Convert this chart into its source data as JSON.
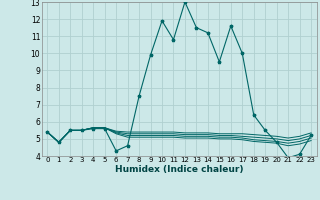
{
  "xlabel": "Humidex (Indice chaleur)",
  "xlim": [
    -0.5,
    23.5
  ],
  "ylim": [
    4,
    13
  ],
  "yticks": [
    4,
    5,
    6,
    7,
    8,
    9,
    10,
    11,
    12,
    13
  ],
  "xticks": [
    0,
    1,
    2,
    3,
    4,
    5,
    6,
    7,
    8,
    9,
    10,
    11,
    12,
    13,
    14,
    15,
    16,
    17,
    18,
    19,
    20,
    21,
    22,
    23
  ],
  "background_color": "#cce8e8",
  "grid_color": "#b0d0d0",
  "line_color": "#006666",
  "lines": [
    {
      "x": [
        0,
        1,
        2,
        3,
        4,
        5,
        6,
        7,
        8,
        9,
        10,
        11,
        12,
        13,
        14,
        15,
        16,
        17,
        18,
        19,
        20,
        21,
        22,
        23
      ],
      "y": [
        5.4,
        4.8,
        5.5,
        5.5,
        5.6,
        5.6,
        4.3,
        4.6,
        7.5,
        9.9,
        11.9,
        10.8,
        13.0,
        11.5,
        11.2,
        9.5,
        11.6,
        10.0,
        6.4,
        5.5,
        4.8,
        3.9,
        4.1,
        5.2
      ],
      "marker": "*",
      "lw": 0.8
    },
    {
      "x": [
        0,
        1,
        2,
        3,
        4,
        5,
        6,
        7,
        8,
        9,
        10,
        11,
        12,
        13,
        14,
        15,
        16,
        17,
        18,
        19,
        20,
        21,
        22,
        23
      ],
      "y": [
        5.4,
        4.8,
        5.5,
        5.5,
        5.65,
        5.65,
        5.45,
        5.4,
        5.4,
        5.4,
        5.4,
        5.4,
        5.35,
        5.35,
        5.35,
        5.3,
        5.3,
        5.3,
        5.25,
        5.2,
        5.15,
        5.05,
        5.15,
        5.35
      ],
      "marker": null,
      "lw": 0.7
    },
    {
      "x": [
        0,
        1,
        2,
        3,
        4,
        5,
        6,
        7,
        8,
        9,
        10,
        11,
        12,
        13,
        14,
        15,
        16,
        17,
        18,
        19,
        20,
        21,
        22,
        23
      ],
      "y": [
        5.4,
        4.8,
        5.5,
        5.5,
        5.65,
        5.65,
        5.4,
        5.3,
        5.3,
        5.3,
        5.3,
        5.3,
        5.25,
        5.25,
        5.25,
        5.2,
        5.2,
        5.15,
        5.1,
        5.05,
        5.0,
        4.9,
        5.0,
        5.2
      ],
      "marker": null,
      "lw": 0.7
    },
    {
      "x": [
        0,
        1,
        2,
        3,
        4,
        5,
        6,
        7,
        8,
        9,
        10,
        11,
        12,
        13,
        14,
        15,
        16,
        17,
        18,
        19,
        20,
        21,
        22,
        23
      ],
      "y": [
        5.4,
        4.8,
        5.5,
        5.5,
        5.65,
        5.65,
        5.35,
        5.2,
        5.2,
        5.2,
        5.2,
        5.2,
        5.15,
        5.15,
        5.15,
        5.1,
        5.1,
        5.05,
        4.95,
        4.9,
        4.85,
        4.75,
        4.85,
        5.05
      ],
      "marker": null,
      "lw": 0.7
    },
    {
      "x": [
        0,
        1,
        2,
        3,
        4,
        5,
        6,
        7,
        8,
        9,
        10,
        11,
        12,
        13,
        14,
        15,
        16,
        17,
        18,
        19,
        20,
        21,
        22,
        23
      ],
      "y": [
        5.4,
        4.8,
        5.5,
        5.5,
        5.65,
        5.65,
        5.3,
        5.1,
        5.1,
        5.1,
        5.1,
        5.1,
        5.05,
        5.05,
        5.05,
        5.0,
        5.0,
        4.95,
        4.85,
        4.8,
        4.75,
        4.6,
        4.7,
        4.9
      ],
      "marker": null,
      "lw": 0.7
    }
  ]
}
